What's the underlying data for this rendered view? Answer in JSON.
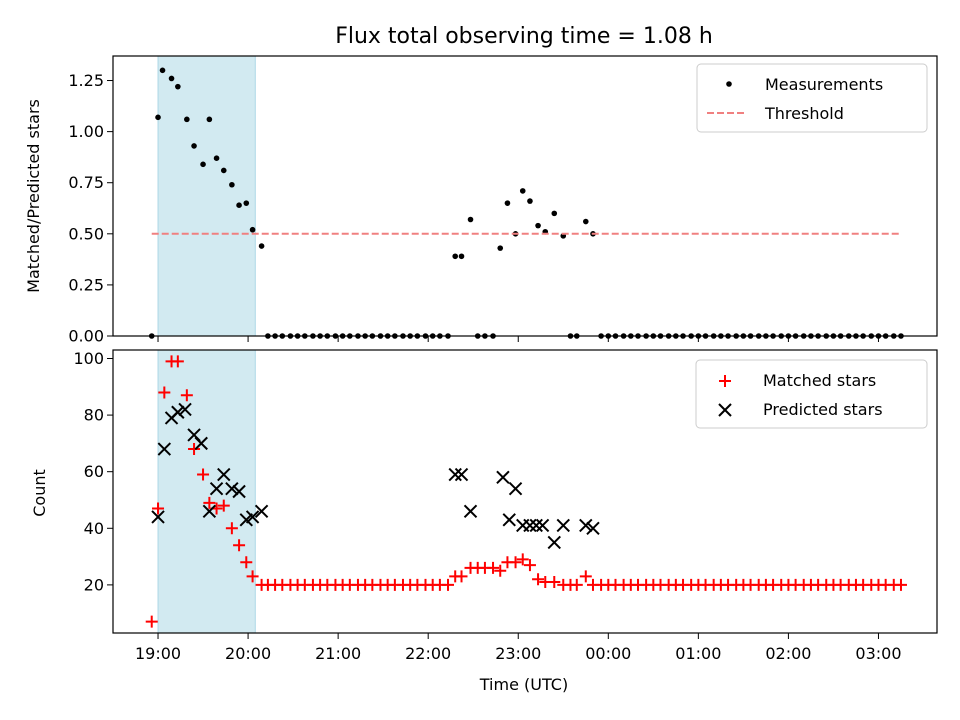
{
  "chart_data": [
    {
      "type": "scatter",
      "title": "Flux total observing time = 1.08 h",
      "xlabel": "",
      "ylabel": "Matched/Predicted stars",
      "ylim": [
        0,
        1.37
      ],
      "yticks": [
        "0.00",
        "0.25",
        "0.50",
        "0.75",
        "1.00",
        "1.25"
      ],
      "ytick_values": [
        0,
        0.25,
        0.5,
        0.75,
        1.0,
        1.25
      ],
      "shaded_span": {
        "x0": 19.0,
        "x1": 20.08,
        "color": "#add8e6"
      },
      "legend_position": "upper right",
      "series": [
        {
          "name": "Measurements",
          "kind": "points",
          "color": "#000000",
          "x": [
            18.93,
            19.0,
            19.05,
            19.15,
            19.22,
            19.32,
            19.4,
            19.5,
            19.57,
            19.65,
            19.73,
            19.82,
            19.9,
            19.98,
            20.05,
            20.15,
            20.22,
            20.3,
            20.38,
            20.47,
            20.55,
            20.63,
            20.72,
            20.8,
            20.88,
            20.97,
            21.05,
            21.13,
            21.22,
            21.3,
            21.38,
            21.47,
            21.55,
            21.63,
            21.72,
            21.8,
            21.88,
            21.97,
            22.05,
            22.13,
            22.22,
            22.3,
            22.37,
            22.47,
            22.55,
            22.63,
            22.72,
            22.8,
            22.88,
            22.97,
            23.05,
            23.13,
            23.22,
            23.3,
            23.4,
            23.5,
            23.58,
            23.65,
            23.75,
            23.83,
            23.92,
            24.0,
            24.08,
            24.17,
            24.25,
            24.33,
            24.42,
            24.5,
            24.58,
            24.67,
            24.75,
            24.83,
            24.92,
            25.0,
            25.08,
            25.17,
            25.25,
            25.33,
            25.42,
            25.5,
            25.58,
            25.67,
            25.75,
            25.83,
            25.92,
            26.0,
            26.08,
            26.17,
            26.25,
            26.33,
            26.42,
            26.5,
            26.58,
            26.67,
            26.75,
            26.83,
            26.92,
            27.0,
            27.08,
            27.17,
            27.25
          ],
          "y": [
            0,
            1.07,
            1.3,
            1.26,
            1.22,
            1.06,
            0.93,
            0.84,
            1.06,
            0.87,
            0.81,
            0.74,
            0.64,
            0.65,
            0.52,
            0.44,
            0,
            0,
            0,
            0,
            0,
            0,
            0,
            0,
            0,
            0,
            0,
            0,
            0,
            0,
            0,
            0,
            0,
            0,
            0,
            0,
            0,
            0,
            0,
            0,
            0,
            0.39,
            0.39,
            0.57,
            0,
            0,
            0,
            0.43,
            0.65,
            0.5,
            0.71,
            0.66,
            0.54,
            0.51,
            0.6,
            0.49,
            0,
            0,
            0.56,
            0.5,
            0,
            0,
            0,
            0,
            0,
            0,
            0,
            0,
            0,
            0,
            0,
            0,
            0,
            0,
            0,
            0,
            0,
            0,
            0,
            0,
            0,
            0,
            0,
            0,
            0,
            0,
            0,
            0,
            0,
            0,
            0,
            0,
            0,
            0,
            0,
            0,
            0,
            0,
            0,
            0,
            0
          ]
        },
        {
          "name": "Threshold",
          "kind": "line",
          "color": "#f08080",
          "dash": true,
          "x": [
            18.93,
            27.25
          ],
          "y": [
            0.5,
            0.5
          ]
        }
      ]
    },
    {
      "type": "scatter",
      "title": "",
      "xlabel": "Time (UTC)",
      "ylabel": "Count",
      "ylim": [
        3,
        103
      ],
      "yticks": [
        "20",
        "40",
        "60",
        "80",
        "100"
      ],
      "ytick_values": [
        20,
        40,
        60,
        80,
        100
      ],
      "xlim": [
        18.5,
        27.65
      ],
      "xticks": [
        "19:00",
        "20:00",
        "21:00",
        "22:00",
        "23:00",
        "00:00",
        "01:00",
        "02:00",
        "03:00"
      ],
      "xtick_values": [
        19,
        20,
        21,
        22,
        23,
        24,
        25,
        26,
        27
      ],
      "shaded_span": {
        "x0": 19.0,
        "x1": 20.08,
        "color": "#add8e6"
      },
      "legend_position": "upper right",
      "series": [
        {
          "name": "Matched stars",
          "kind": "plus",
          "color": "#ff0000",
          "x": [
            18.93,
            19.0,
            19.07,
            19.15,
            19.22,
            19.32,
            19.4,
            19.5,
            19.57,
            19.65,
            19.73,
            19.82,
            19.9,
            19.98,
            20.05,
            20.15,
            20.22,
            20.3,
            20.38,
            20.47,
            20.55,
            20.63,
            20.72,
            20.8,
            20.88,
            20.97,
            21.05,
            21.13,
            21.22,
            21.3,
            21.38,
            21.47,
            21.55,
            21.63,
            21.72,
            21.8,
            21.88,
            21.97,
            22.05,
            22.13,
            22.22,
            22.3,
            22.37,
            22.47,
            22.55,
            22.63,
            22.72,
            22.8,
            22.88,
            22.97,
            23.05,
            23.13,
            23.22,
            23.3,
            23.4,
            23.5,
            23.58,
            23.65,
            23.75,
            23.83,
            23.92,
            24.0,
            24.08,
            24.17,
            24.25,
            24.33,
            24.42,
            24.5,
            24.58,
            24.67,
            24.75,
            24.83,
            24.92,
            25.0,
            25.08,
            25.17,
            25.25,
            25.33,
            25.42,
            25.5,
            25.58,
            25.67,
            25.75,
            25.83,
            25.92,
            26.0,
            26.08,
            26.17,
            26.25,
            26.33,
            26.42,
            26.5,
            26.58,
            26.67,
            26.75,
            26.83,
            26.92,
            27.0,
            27.08,
            27.17,
            27.25
          ],
          "y": [
            7,
            47,
            88,
            99,
            99,
            87,
            68,
            59,
            49,
            47,
            48,
            40,
            34,
            28,
            23,
            20,
            20,
            20,
            20,
            20,
            20,
            20,
            20,
            20,
            20,
            20,
            20,
            20,
            20,
            20,
            20,
            20,
            20,
            20,
            20,
            20,
            20,
            20,
            20,
            20,
            20,
            23,
            23,
            26,
            26,
            26,
            26,
            25,
            28,
            28,
            29,
            27,
            22,
            21,
            21,
            20,
            20,
            20,
            23,
            20,
            20,
            20,
            20,
            20,
            20,
            20,
            20,
            20,
            20,
            20,
            20,
            20,
            20,
            20,
            20,
            20,
            20,
            20,
            20,
            20,
            20,
            20,
            20,
            20,
            20,
            20,
            20,
            20,
            20,
            20,
            20,
            20,
            20,
            20,
            20,
            20,
            20,
            20,
            20,
            20,
            20
          ]
        },
        {
          "name": "Predicted stars",
          "kind": "cross",
          "color": "#000000",
          "x": [
            19.0,
            19.07,
            19.15,
            19.22,
            19.3,
            19.4,
            19.48,
            19.57,
            19.65,
            19.73,
            19.82,
            19.9,
            19.98,
            20.05,
            20.15,
            22.3,
            22.37,
            22.47,
            22.83,
            22.9,
            22.97,
            23.05,
            23.13,
            23.2,
            23.27,
            23.4,
            23.5,
            23.75,
            23.83
          ],
          "y": [
            44,
            68,
            79,
            81,
            82,
            73,
            70,
            46,
            54,
            59,
            54,
            53,
            43,
            44,
            46,
            59,
            59,
            46,
            58,
            43,
            54,
            41,
            41,
            41,
            41,
            35,
            41,
            41,
            40
          ]
        }
      ]
    }
  ]
}
